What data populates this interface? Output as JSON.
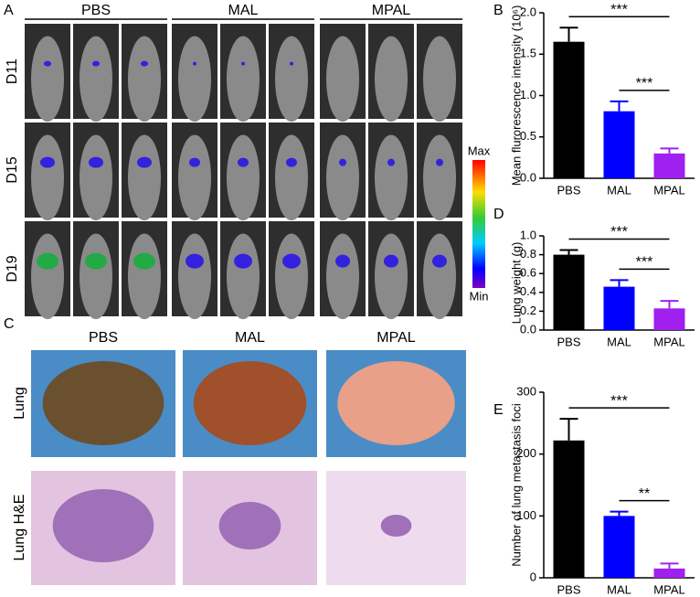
{
  "panel_a": {
    "label": "A",
    "groups": [
      "PBS",
      "MAL",
      "MPAL"
    ],
    "days": [
      "D11",
      "D15",
      "D19"
    ],
    "colorbar": {
      "max": "Max",
      "min": "Min"
    }
  },
  "panel_c": {
    "label": "C",
    "groups": [
      "PBS",
      "MAL",
      "MPAL"
    ],
    "rows": [
      "Lung",
      "Lung H&E"
    ]
  },
  "chart_data": [
    {
      "type": "bar",
      "label": "B",
      "ylabel": "Mean flurorescence intensity (10⁶)",
      "categories": [
        "PBS",
        "MAL",
        "MPAL"
      ],
      "values": [
        1.65,
        0.81,
        0.3
      ],
      "errors": [
        0.17,
        0.12,
        0.06
      ],
      "colors": [
        "#000000",
        "#0000ff",
        "#a020f0"
      ],
      "ylim": [
        0,
        2.0
      ],
      "yticks": [
        {
          "value": 0,
          "label": "0.0"
        },
        0.5,
        {
          "value": 1,
          "label": "1.0"
        },
        1.5,
        {
          "value": 2,
          "label": "2.0"
        }
      ],
      "significance": [
        "***",
        "***"
      ]
    },
    {
      "type": "bar",
      "label": "D",
      "ylabel": "Lung weight (g)",
      "categories": [
        "PBS",
        "MAL",
        "MPAL"
      ],
      "values": [
        0.8,
        0.46,
        0.23
      ],
      "errors": [
        0.05,
        0.07,
        0.08
      ],
      "colors": [
        "#000000",
        "#0000ff",
        "#a020f0"
      ],
      "ylim": [
        0,
        1.0
      ],
      "yticks": [
        {
          "value": 0,
          "label": "0.0"
        },
        0.2,
        0.4,
        0.6,
        0.8,
        {
          "value": 1,
          "label": "1.0"
        }
      ],
      "significance": [
        "***",
        "***"
      ]
    },
    {
      "type": "bar",
      "label": "E",
      "ylabel": "Number of lung metastasis foci",
      "categories": [
        "PBS",
        "MAL",
        "MPAL"
      ],
      "values": [
        222,
        100,
        15
      ],
      "errors": [
        35,
        7,
        8
      ],
      "colors": [
        "#000000",
        "#0000ff",
        "#a020f0"
      ],
      "ylim": [
        0,
        300
      ],
      "yticks": [
        0,
        100,
        200,
        300
      ],
      "significance": [
        "***",
        "**"
      ]
    }
  ]
}
